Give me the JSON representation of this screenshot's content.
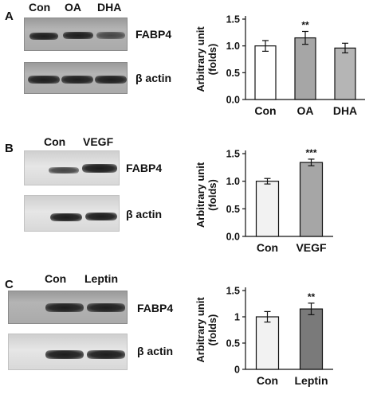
{
  "panels": [
    {
      "letter": "A",
      "lanes": [
        "Con",
        "OA",
        "DHA"
      ],
      "bands": [
        "FABP4",
        "β actin"
      ]
    },
    {
      "letter": "B",
      "lanes": [
        "Con",
        "VEGF"
      ],
      "bands": [
        "FABP4",
        "β actin"
      ]
    },
    {
      "letter": "C",
      "lanes": [
        "Con",
        "Leptin"
      ],
      "bands": [
        "FABP4",
        "β actin"
      ]
    }
  ],
  "chart_data": [
    {
      "type": "bar",
      "categories": [
        "Con",
        "OA",
        "DHA"
      ],
      "values": [
        1.0,
        1.15,
        0.96
      ],
      "errors": [
        0.1,
        0.12,
        0.09
      ],
      "annotations": [
        "",
        "**",
        ""
      ],
      "bar_colors": [
        "#ffffff",
        "#a6a6a6",
        "#b5b5b5"
      ],
      "ylabel": "Arbitrary unit\n(folds)",
      "ylim": [
        0,
        1.5
      ],
      "yticks": [
        "0.0",
        "0.5",
        "1.0",
        "1.5"
      ],
      "ytick_values": [
        0,
        0.5,
        1.0,
        1.5
      ]
    },
    {
      "type": "bar",
      "categories": [
        "Con",
        "VEGF"
      ],
      "values": [
        1.0,
        1.34
      ],
      "errors": [
        0.05,
        0.06
      ],
      "annotations": [
        "",
        "***"
      ],
      "bar_colors": [
        "#f2f2f2",
        "#a6a6a6"
      ],
      "ylabel": "Arbitrary unit\n(folds)",
      "ylim": [
        0,
        1.5
      ],
      "yticks": [
        "0.0",
        "0.5",
        "1.0",
        "1.5"
      ],
      "ytick_values": [
        0,
        0.5,
        1.0,
        1.5
      ]
    },
    {
      "type": "bar",
      "categories": [
        "Con",
        "Leptin"
      ],
      "values": [
        1.0,
        1.15
      ],
      "errors": [
        0.1,
        0.11
      ],
      "annotations": [
        "",
        "**"
      ],
      "bar_colors": [
        "#f2f2f2",
        "#7a7a7a"
      ],
      "ylabel": "Arbitrary unit\n(folds)",
      "ylim": [
        0,
        1.5
      ],
      "yticks": [
        "0",
        "0.5",
        "1",
        "1.5"
      ],
      "ytick_values": [
        0,
        0.5,
        1,
        1.5
      ]
    }
  ]
}
